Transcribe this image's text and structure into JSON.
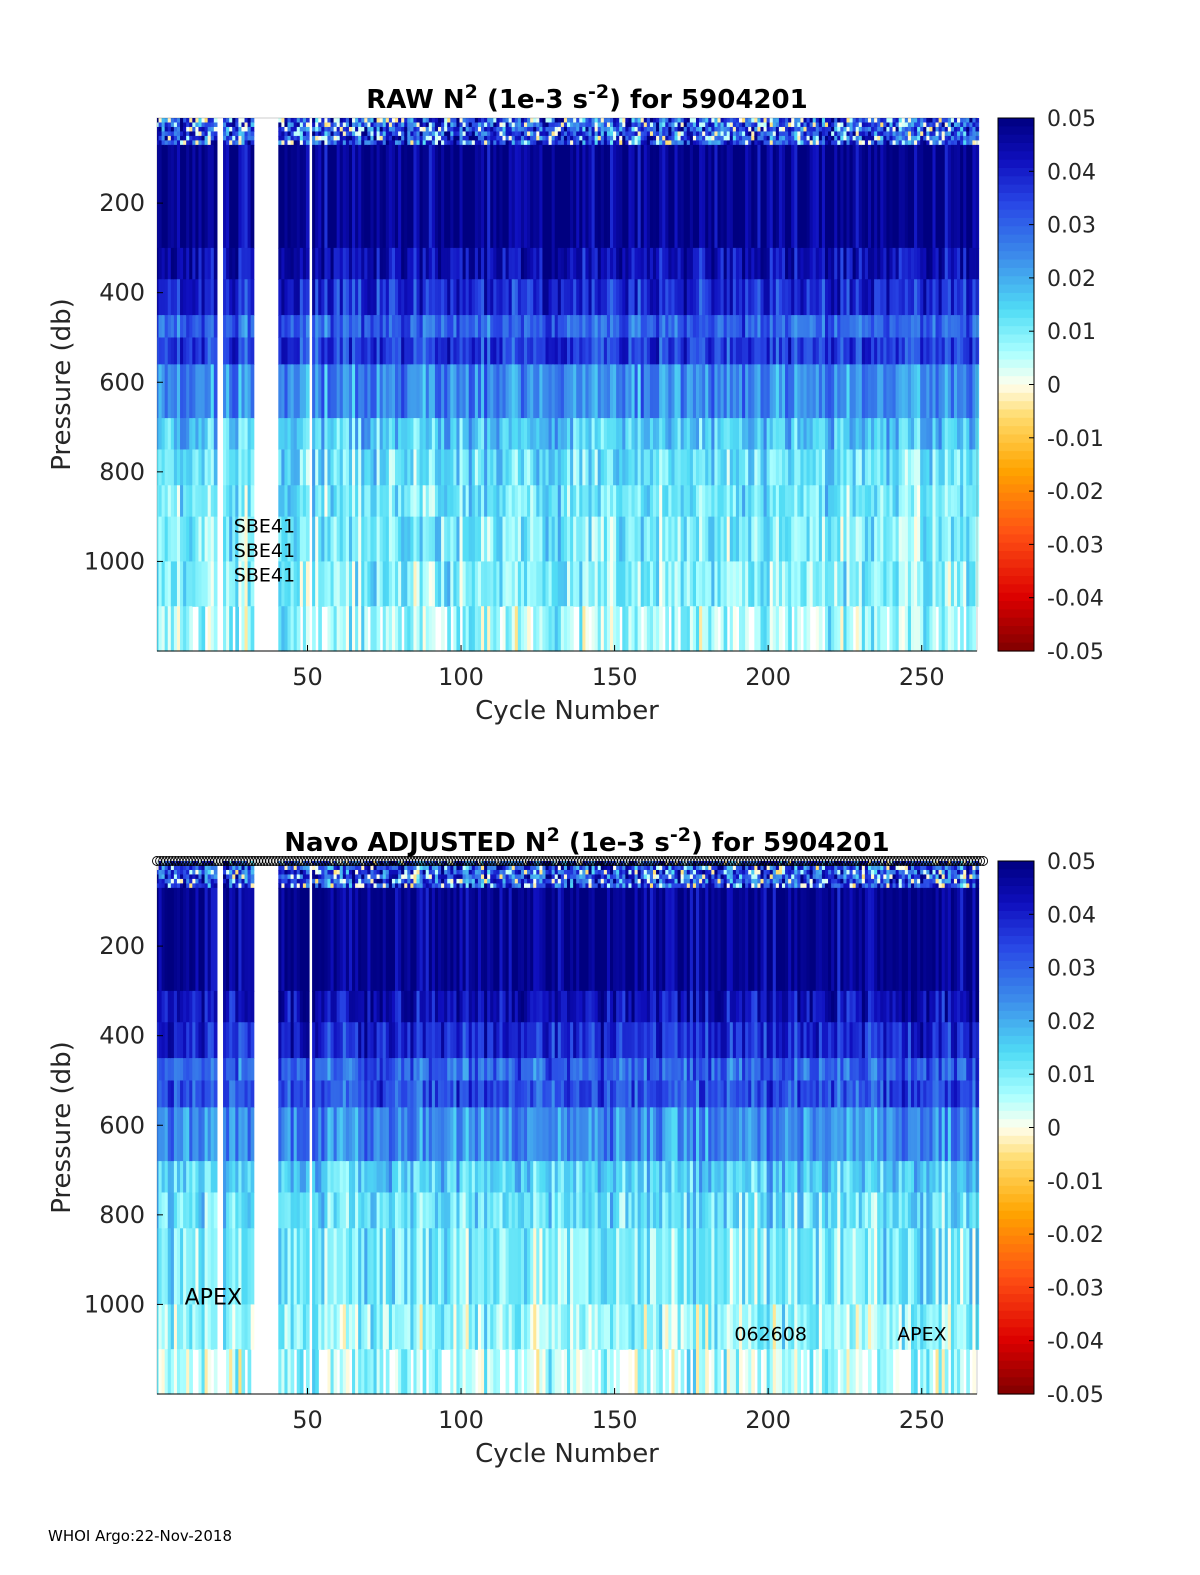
{
  "chart_data": [
    {
      "type": "heatmap",
      "title_main": "RAW N",
      "title_sup": "2",
      "title_mid": " (1e-3 s",
      "title_sup2": "-2",
      "title_end": ") for 5904201",
      "xlabel": "Cycle Number",
      "ylabel": "Pressure (db)",
      "xlim": [
        1,
        268
      ],
      "ylim": [
        1200,
        10
      ],
      "x_ticks": [
        "50",
        "100",
        "150",
        "200",
        "250"
      ],
      "x_tick_values": [
        50,
        100,
        150,
        200,
        250
      ],
      "y_ticks": [
        "200",
        "400",
        "600",
        "800",
        "1000"
      ],
      "y_tick_values": [
        200,
        400,
        600,
        800,
        1000
      ],
      "colorbar_ticks": [
        "0.05",
        "0.04",
        "0.03",
        "0.02",
        "0.01",
        "0",
        "-0.01",
        "-0.02",
        "-0.03",
        "-0.04",
        "-0.05"
      ],
      "colorbar_values": [
        0.05,
        0.04,
        0.03,
        0.02,
        0.01,
        0,
        -0.01,
        -0.02,
        -0.03,
        -0.04,
        -0.05
      ],
      "clim": [
        -0.05,
        0.05
      ],
      "pressure_bands": [
        {
          "top": 10,
          "bottom": 70,
          "value": 0.034
        },
        {
          "top": 70,
          "bottom": 300,
          "value": 0.048
        },
        {
          "top": 300,
          "bottom": 370,
          "value": 0.043
        },
        {
          "top": 370,
          "bottom": 450,
          "value": 0.038
        },
        {
          "top": 450,
          "bottom": 500,
          "value": 0.03
        },
        {
          "top": 500,
          "bottom": 560,
          "value": 0.035
        },
        {
          "top": 560,
          "bottom": 680,
          "value": 0.024
        },
        {
          "top": 680,
          "bottom": 750,
          "value": 0.016
        },
        {
          "top": 750,
          "bottom": 830,
          "value": 0.012
        },
        {
          "top": 830,
          "bottom": 900,
          "value": 0.011
        },
        {
          "top": 900,
          "bottom": 1000,
          "value": 0.01
        },
        {
          "top": 1000,
          "bottom": 1100,
          "value": 0.009
        },
        {
          "top": 1100,
          "bottom": 1200,
          "value": 0.007
        }
      ],
      "missing_cycles": [
        21,
        22,
        33,
        34,
        35,
        36,
        37,
        38,
        39,
        40,
        51
      ],
      "annotations": [
        {
          "text": "SBE41",
          "x": 26,
          "y": 935
        },
        {
          "text": "SBE41",
          "x": 26,
          "y": 990
        },
        {
          "text": "SBE41",
          "x": 26,
          "y": 1045
        }
      ],
      "markers_on_top": false
    },
    {
      "type": "heatmap",
      "title_main": "Navo  ADJUSTED N",
      "title_sup": "2",
      "title_mid": " (1e-3 s",
      "title_sup2": "-2",
      "title_end": ") for 5904201",
      "xlabel": "Cycle Number",
      "ylabel": "Pressure (db)",
      "xlim": [
        1,
        268
      ],
      "ylim": [
        1200,
        10
      ],
      "x_ticks": [
        "50",
        "100",
        "150",
        "200",
        "250"
      ],
      "x_tick_values": [
        50,
        100,
        150,
        200,
        250
      ],
      "y_ticks": [
        "200",
        "400",
        "600",
        "800",
        "1000"
      ],
      "y_tick_values": [
        200,
        400,
        600,
        800,
        1000
      ],
      "colorbar_ticks": [
        "0.05",
        "0.04",
        "0.03",
        "0.02",
        "0.01",
        "0",
        "-0.01",
        "-0.02",
        "-0.03",
        "-0.04",
        "-0.05"
      ],
      "colorbar_values": [
        0.05,
        0.04,
        0.03,
        0.02,
        0.01,
        0,
        -0.01,
        -0.02,
        -0.03,
        -0.04,
        -0.05
      ],
      "clim": [
        -0.05,
        0.05
      ],
      "pressure_bands": [
        {
          "top": 10,
          "bottom": 70,
          "value": 0.034
        },
        {
          "top": 70,
          "bottom": 300,
          "value": 0.048
        },
        {
          "top": 300,
          "bottom": 370,
          "value": 0.043
        },
        {
          "top": 370,
          "bottom": 450,
          "value": 0.038
        },
        {
          "top": 450,
          "bottom": 500,
          "value": 0.03
        },
        {
          "top": 500,
          "bottom": 560,
          "value": 0.033
        },
        {
          "top": 560,
          "bottom": 680,
          "value": 0.024
        },
        {
          "top": 680,
          "bottom": 750,
          "value": 0.015
        },
        {
          "top": 750,
          "bottom": 830,
          "value": 0.012
        },
        {
          "top": 830,
          "bottom": 1000,
          "value": 0.01
        },
        {
          "top": 1000,
          "bottom": 1100,
          "value": 0.007
        },
        {
          "top": 1100,
          "bottom": 1200,
          "value": 0.006
        }
      ],
      "missing_cycles": [
        21,
        22,
        33,
        34,
        35,
        36,
        37,
        38,
        39,
        40,
        51
      ],
      "annotations": [
        {
          "text": "APEX",
          "x": 10,
          "y": 1000
        },
        {
          "text": "062608",
          "x": 189,
          "y": 1080
        },
        {
          "text": "APEX",
          "x": 242,
          "y": 1080
        }
      ],
      "markers_on_top": true
    }
  ],
  "footer": {
    "text": "WHOI Argo:22-Nov-2018"
  }
}
